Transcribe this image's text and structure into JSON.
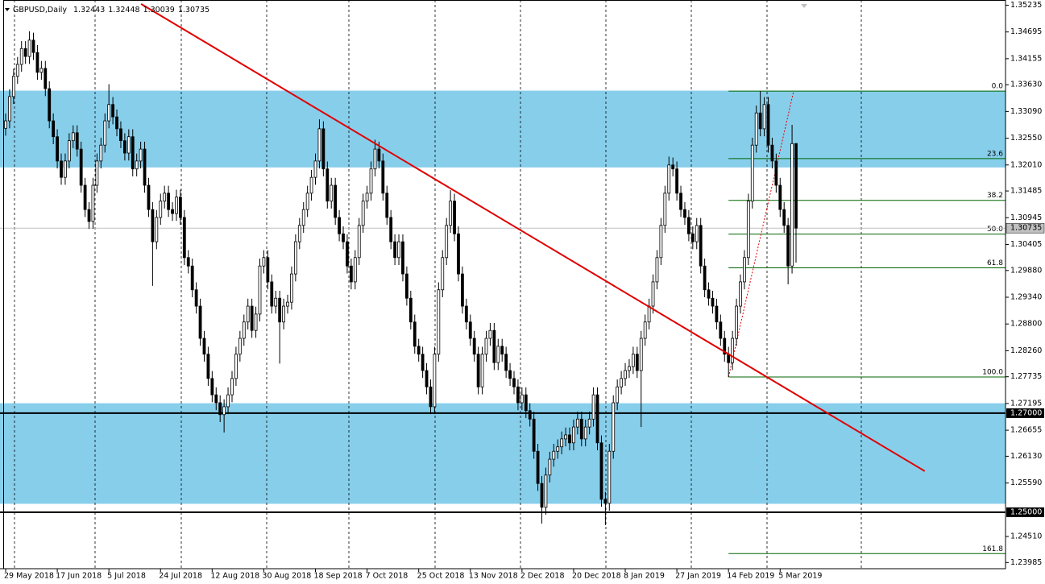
{
  "chart_data": {
    "type": "candlestick",
    "title": "GBPUSD,Daily",
    "categories": [
      "29 May 2018",
      null,
      null,
      null,
      null,
      null,
      null,
      null,
      null,
      null,
      null,
      null,
      null,
      "17 Jun 2018",
      null,
      null,
      null,
      null,
      null,
      null,
      null,
      null,
      null,
      null,
      null,
      null,
      "5 Jul 2018",
      null,
      null,
      null,
      null,
      null,
      null,
      null,
      null,
      null,
      null,
      null,
      null,
      "24 Jul 2018",
      null,
      null,
      null,
      null,
      null,
      null,
      null,
      null,
      null,
      null,
      null,
      null,
      "12 Aug 2018",
      null,
      null,
      null,
      null,
      null,
      null,
      null,
      null,
      null,
      null,
      null,
      null,
      "30 Aug 2018",
      null,
      null,
      null,
      null,
      null,
      null,
      null,
      null,
      null,
      null,
      null,
      null,
      "18 Sep 2018",
      null,
      null,
      null,
      null,
      null,
      null,
      null,
      null,
      null,
      null,
      null,
      null,
      "7 Oct 2018",
      null,
      null,
      null,
      null,
      null,
      null,
      null,
      null,
      null,
      null,
      null,
      null,
      "25 Oct 2018",
      null,
      null,
      null,
      null,
      null,
      null,
      null,
      null,
      null,
      null,
      null,
      null,
      "13 Nov 2018",
      null,
      null,
      null,
      null,
      null,
      null,
      null,
      null,
      null,
      null,
      null,
      null,
      "2 Dec 2018",
      null,
      null,
      null,
      null,
      null,
      null,
      null,
      null,
      null,
      null,
      null,
      null,
      "20 Dec 2018",
      null,
      null,
      null,
      null,
      null,
      null,
      null,
      null,
      null,
      null,
      null,
      null,
      "8 Jan 2019",
      null,
      null,
      null,
      null,
      null,
      null,
      null,
      null,
      null,
      null,
      null,
      null,
      "27 Jan 2019",
      null,
      null,
      null,
      null,
      null,
      null,
      null,
      null,
      null,
      null,
      null,
      null,
      "14 Feb 2019",
      null,
      null,
      null,
      null,
      null,
      null,
      null,
      null,
      null,
      null,
      null,
      null,
      "5 Mar 2019",
      null,
      null,
      null,
      null
    ],
    "open": [
      1.3275,
      1.329,
      1.3339,
      1.338,
      1.3404,
      1.3436,
      1.342,
      1.3453,
      1.3428,
      1.3388,
      1.3396,
      1.3355,
      1.329,
      1.3258,
      1.3209,
      1.3176,
      1.3209,
      1.325,
      1.3266,
      1.3233,
      1.316,
      1.3111,
      1.3087,
      1.316,
      1.3209,
      1.3241,
      1.329,
      1.3323,
      1.3298,
      1.3274,
      1.325,
      1.3225,
      1.3258,
      1.3193,
      1.3209,
      1.3233,
      1.316,
      1.3111,
      1.3046,
      1.3095,
      1.3128,
      1.3144,
      1.3111,
      1.3103,
      1.3136,
      1.3095,
      1.3014,
      1.2997,
      1.2949,
      1.2916,
      1.2851,
      1.2819,
      1.277,
      1.2737,
      1.2721,
      1.2697,
      1.2713,
      1.2737,
      1.277,
      1.2819,
      1.2851,
      1.2884,
      1.2916,
      1.2867,
      1.29,
      1.2997,
      1.3014,
      1.2965,
      1.2916,
      1.2932,
      1.2884,
      1.2916,
      1.2924,
      1.2981,
      1.3046,
      1.3079,
      1.3111,
      1.3144,
      1.3176,
      1.3209,
      1.3274,
      1.3193,
      1.3128,
      1.316,
      1.3095,
      1.3062,
      1.3046,
      1.2997,
      1.2965,
      1.3014,
      1.3079,
      1.3128,
      1.3144,
      1.3193,
      1.3233,
      1.3209,
      1.3144,
      1.3095,
      1.3046,
      1.3014,
      1.3046,
      1.2981,
      1.2932,
      1.2884,
      1.2835,
      1.2819,
      1.2786,
      1.2753,
      1.2713,
      1.2819,
      1.2949,
      1.3014,
      1.3079,
      1.3128,
      1.3062,
      1.2981,
      1.2916,
      1.2884,
      1.2851,
      1.2819,
      1.2753,
      1.2819,
      1.2851,
      1.2867,
      1.2802,
      1.2835,
      1.2819,
      1.2786,
      1.277,
      1.2753,
      1.2721,
      1.2737,
      1.2705,
      1.2688,
      1.2623,
      1.2558,
      1.251,
      1.2575,
      1.2607,
      1.2623,
      1.2632,
      1.2648,
      1.2656,
      1.264,
      1.2672,
      1.2688,
      1.2648,
      1.2672,
      1.2688,
      1.2737,
      1.264,
      1.2526,
      1.2518,
      1.2623,
      1.2721,
      1.2753,
      1.277,
      1.2786,
      1.2794,
      1.2819,
      1.2786,
      1.2851,
      1.2884,
      1.2916,
      1.2965,
      1.3014,
      1.3079,
      1.3144,
      1.3201,
      1.3193,
      1.3144,
      1.3111,
      1.3095,
      1.3062,
      1.3046,
      1.3079,
      1.2997,
      1.2949,
      1.2932,
      1.2916,
      1.2884,
      1.2851,
      1.2819,
      1.2802,
      1.2851,
      1.2916,
      1.2965,
      1.3014,
      1.3128,
      1.3241,
      1.3306,
      1.3274,
      1.3323,
      1.3241,
      1.3209,
      1.316,
      1.3111,
      1.3079,
      1.2997,
      1.32443
    ],
    "high": [
      1.3305,
      1.3354,
      1.3395,
      1.3419,
      1.3451,
      1.3451,
      1.3471,
      1.3468,
      1.3443,
      1.3411,
      1.3411,
      1.337,
      1.3305,
      1.3273,
      1.3224,
      1.3224,
      1.3265,
      1.3281,
      1.3281,
      1.3248,
      1.3175,
      1.3126,
      1.3175,
      1.3224,
      1.3256,
      1.3305,
      1.3364,
      1.3338,
      1.3313,
      1.3289,
      1.3265,
      1.3273,
      1.3273,
      1.3224,
      1.3248,
      1.3248,
      1.3175,
      1.3126,
      1.311,
      1.3143,
      1.3159,
      1.3159,
      1.3126,
      1.3151,
      1.3151,
      1.311,
      1.3029,
      1.3012,
      1.2964,
      1.2931,
      1.2866,
      1.2834,
      1.2785,
      1.2752,
      1.2736,
      1.2728,
      1.2752,
      1.2785,
      1.2834,
      1.2866,
      1.2899,
      1.2931,
      1.2931,
      1.2915,
      1.3012,
      1.3029,
      1.3029,
      1.298,
      1.2947,
      1.2947,
      1.2931,
      1.2939,
      1.2996,
      1.3061,
      1.3094,
      1.3126,
      1.3159,
      1.3191,
      1.3224,
      1.3293,
      1.3289,
      1.3208,
      1.3175,
      1.3175,
      1.311,
      1.3077,
      1.3061,
      1.3012,
      1.3029,
      1.3094,
      1.3143,
      1.3159,
      1.3208,
      1.3252,
      1.3248,
      1.3224,
      1.3159,
      1.311,
      1.3061,
      1.3061,
      1.3061,
      1.2996,
      1.2947,
      1.2899,
      1.285,
      1.2834,
      1.2801,
      1.2768,
      1.2834,
      1.2964,
      1.3029,
      1.3094,
      1.315,
      1.3143,
      1.3077,
      1.2996,
      1.2931,
      1.2899,
      1.2866,
      1.2834,
      1.2834,
      1.2866,
      1.2882,
      1.2882,
      1.285,
      1.285,
      1.2834,
      1.2801,
      1.2785,
      1.2768,
      1.2752,
      1.2752,
      1.272,
      1.2703,
      1.2638,
      1.2573,
      1.259,
      1.2622,
      1.2638,
      1.2647,
      1.2663,
      1.2671,
      1.2671,
      1.2687,
      1.2703,
      1.2703,
      1.2687,
      1.2703,
      1.2752,
      1.2752,
      1.2655,
      1.2541,
      1.2638,
      1.2736,
      1.2768,
      1.2785,
      1.2801,
      1.2809,
      1.2834,
      1.2834,
      1.2866,
      1.2899,
      1.2931,
      1.298,
      1.3029,
      1.3094,
      1.3159,
      1.3218,
      1.3216,
      1.3208,
      1.3159,
      1.3126,
      1.311,
      1.3077,
      1.3094,
      1.3094,
      1.3012,
      1.2964,
      1.2947,
      1.2931,
      1.2899,
      1.2866,
      1.2834,
      1.2866,
      1.2931,
      1.298,
      1.3029,
      1.3143,
      1.3256,
      1.3321,
      1.335,
      1.3338,
      1.3338,
      1.3256,
      1.3224,
      1.3175,
      1.3126,
      1.3094,
      1.3282,
      1.32448
    ],
    "low": [
      1.326,
      1.3275,
      1.3324,
      1.3365,
      1.3389,
      1.3405,
      1.3405,
      1.3413,
      1.3373,
      1.3373,
      1.334,
      1.3275,
      1.3243,
      1.3194,
      1.3161,
      1.3161,
      1.3194,
      1.3235,
      1.3218,
      1.3145,
      1.3096,
      1.3072,
      1.3072,
      1.3145,
      1.3194,
      1.3226,
      1.3275,
      1.3283,
      1.3259,
      1.3235,
      1.321,
      1.321,
      1.3178,
      1.3178,
      1.3194,
      1.3145,
      1.3096,
      1.2957,
      1.3031,
      1.308,
      1.3113,
      1.3096,
      1.3088,
      1.3088,
      1.308,
      1.2999,
      1.2982,
      1.2934,
      1.2901,
      1.2836,
      1.2804,
      1.2755,
      1.2722,
      1.2706,
      1.2682,
      1.2661,
      1.2698,
      1.2722,
      1.2755,
      1.2804,
      1.2836,
      1.2869,
      1.2852,
      1.2852,
      1.2885,
      1.2982,
      1.295,
      1.2901,
      1.2901,
      1.28,
      1.2869,
      1.2901,
      1.2909,
      1.2966,
      1.3031,
      1.3064,
      1.3096,
      1.3129,
      1.3161,
      1.3194,
      1.3178,
      1.3113,
      1.3113,
      1.308,
      1.3047,
      1.3031,
      1.2982,
      1.295,
      1.295,
      1.2999,
      1.3064,
      1.3113,
      1.3129,
      1.3178,
      1.3194,
      1.3129,
      1.308,
      1.3031,
      1.2999,
      1.2999,
      1.2966,
      1.2917,
      1.2869,
      1.282,
      1.2804,
      1.2771,
      1.2738,
      1.2698,
      1.2698,
      1.2804,
      1.2934,
      1.2999,
      1.3064,
      1.3047,
      1.2966,
      1.2901,
      1.2869,
      1.2836,
      1.2804,
      1.2738,
      1.2738,
      1.2804,
      1.2836,
      1.2787,
      1.2787,
      1.2804,
      1.2771,
      1.2755,
      1.2738,
      1.2706,
      1.2706,
      1.269,
      1.2673,
      1.2608,
      1.2543,
      1.2477,
      1.2495,
      1.256,
      1.2592,
      1.2608,
      1.2617,
      1.2633,
      1.2625,
      1.2625,
      1.2657,
      1.2633,
      1.2633,
      1.2657,
      1.2673,
      1.2625,
      1.2511,
      1.2474,
      1.2503,
      1.2608,
      1.2706,
      1.2738,
      1.2755,
      1.2771,
      1.2779,
      1.2771,
      1.2672,
      1.2836,
      1.2869,
      1.2901,
      1.295,
      1.2999,
      1.3064,
      1.3129,
      1.3178,
      1.3129,
      1.3096,
      1.308,
      1.3047,
      1.3031,
      1.3031,
      1.2982,
      1.2934,
      1.2917,
      1.2901,
      1.2869,
      1.2836,
      1.2804,
      1.2773,
      1.2787,
      1.2836,
      1.2901,
      1.295,
      1.2999,
      1.3113,
      1.3226,
      1.3259,
      1.3259,
      1.3226,
      1.3194,
      1.3145,
      1.3096,
      1.3064,
      1.296,
      1.2982,
      1.30039
    ],
    "close": [
      1.329,
      1.3339,
      1.338,
      1.3404,
      1.3436,
      1.342,
      1.3453,
      1.3428,
      1.3388,
      1.3396,
      1.3355,
      1.329,
      1.3258,
      1.3209,
      1.3176,
      1.3209,
      1.325,
      1.3266,
      1.3233,
      1.316,
      1.3111,
      1.3087,
      1.316,
      1.3209,
      1.3241,
      1.329,
      1.3323,
      1.3298,
      1.3274,
      1.325,
      1.3225,
      1.3258,
      1.3193,
      1.3209,
      1.3233,
      1.316,
      1.3111,
      1.3046,
      1.3095,
      1.3128,
      1.3144,
      1.3111,
      1.3103,
      1.3136,
      1.3095,
      1.3014,
      1.2997,
      1.2949,
      1.2916,
      1.2851,
      1.2819,
      1.277,
      1.2737,
      1.2721,
      1.2697,
      1.2713,
      1.2737,
      1.277,
      1.2819,
      1.2851,
      1.2884,
      1.2916,
      1.2867,
      1.29,
      1.2997,
      1.3014,
      1.2965,
      1.2916,
      1.2932,
      1.2884,
      1.2916,
      1.2924,
      1.2981,
      1.3046,
      1.3079,
      1.3111,
      1.3144,
      1.3176,
      1.3209,
      1.3274,
      1.3193,
      1.3128,
      1.316,
      1.3095,
      1.3062,
      1.3046,
      1.2997,
      1.2965,
      1.3014,
      1.3079,
      1.3128,
      1.3144,
      1.3193,
      1.3233,
      1.3209,
      1.3144,
      1.3095,
      1.3046,
      1.3014,
      1.3046,
      1.2981,
      1.2932,
      1.2884,
      1.2835,
      1.2819,
      1.2786,
      1.2753,
      1.2713,
      1.2819,
      1.2949,
      1.3014,
      1.3079,
      1.3128,
      1.3062,
      1.2981,
      1.2916,
      1.2884,
      1.2851,
      1.2819,
      1.2753,
      1.2819,
      1.2851,
      1.2867,
      1.2802,
      1.2835,
      1.2819,
      1.2786,
      1.277,
      1.2753,
      1.2721,
      1.2737,
      1.2705,
      1.2688,
      1.2623,
      1.2558,
      1.251,
      1.2575,
      1.2607,
      1.2623,
      1.2632,
      1.2648,
      1.2656,
      1.264,
      1.2672,
      1.2688,
      1.2648,
      1.2672,
      1.2688,
      1.2737,
      1.264,
      1.2526,
      1.2518,
      1.2623,
      1.2721,
      1.2753,
      1.277,
      1.2786,
      1.2794,
      1.2819,
      1.2786,
      1.2851,
      1.2884,
      1.2916,
      1.2965,
      1.3014,
      1.3079,
      1.3144,
      1.3201,
      1.3193,
      1.3144,
      1.3111,
      1.3095,
      1.3062,
      1.3046,
      1.3079,
      1.2997,
      1.2949,
      1.2932,
      1.2916,
      1.2884,
      1.2851,
      1.2819,
      1.2802,
      1.2851,
      1.2916,
      1.2965,
      1.3014,
      1.3128,
      1.3241,
      1.3306,
      1.3274,
      1.3323,
      1.3241,
      1.3209,
      1.316,
      1.3111,
      1.3079,
      1.2997,
      1.3244,
      1.30735
    ],
    "up_color": "#ffffff",
    "down_color": "#000000",
    "ylim": [
      1.2386,
      1.3534
    ],
    "yticks": [
      1.35235,
      1.34695,
      1.34155,
      {
        "value": 1.3363,
        "label": "1.33630"
      },
      {
        "value": 1.3309,
        "label": "1.33090"
      },
      {
        "value": 1.3255,
        "label": "1.32550"
      },
      {
        "value": 1.3201,
        "label": "1.32010"
      },
      1.31485,
      1.30945,
      1.30405,
      {
        "value": 1.2988,
        "label": "1.29880"
      },
      {
        "value": 1.2934,
        "label": "1.29340"
      },
      {
        "value": 1.288,
        "label": "1.28800"
      },
      {
        "value": 1.2826,
        "label": "1.28260"
      },
      1.27735,
      1.27195,
      1.26655,
      {
        "value": 1.2613,
        "label": "1.26130"
      },
      {
        "value": 1.2559,
        "label": "1.25590"
      },
      {
        "value": 1.2451,
        "label": "1.24510"
      },
      1.23985
    ],
    "zones": [
      {
        "from": 1.3196,
        "to": 1.3351,
        "color": "#87ceeb"
      },
      {
        "from": 1.2517,
        "to": 1.272,
        "color": "#87ceeb"
      }
    ],
    "levels": [
      {
        "value": 1.27,
        "label": "1.27000"
      },
      {
        "value": 1.25,
        "label": "1.25000"
      }
    ],
    "fibonacci": {
      "high": 1.335,
      "low": 1.2773,
      "color": "#006400",
      "levels": [
        {
          "value": 0,
          "label": "0.0"
        },
        23.6,
        38.2,
        {
          "value": 50,
          "label": "50.0"
        },
        61.8,
        {
          "value": 100,
          "label": "100.0"
        },
        161.8
      ]
    },
    "trendline": {
      "x": [
        34.1,
        231.4
      ],
      "y": [
        1.3526,
        1.2583
      ],
      "color": "#e00000"
    }
  }
}
